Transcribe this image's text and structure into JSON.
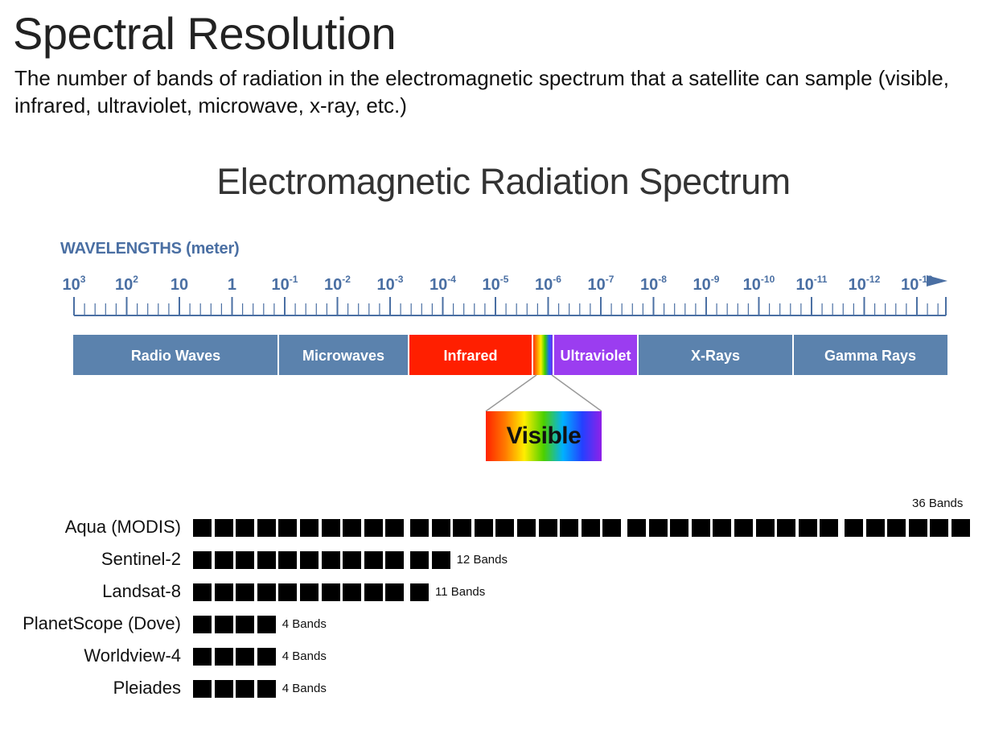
{
  "title": "Spectral Resolution",
  "subtitle": "The number of bands of radiation in the electromagnetic spectrum that a satellite can sample (visible, infrared, ultraviolet, microwave, x-ray, etc.)",
  "diagram": {
    "title": "Electromagnetic Radiation Spectrum",
    "wavelength_axis": {
      "label": "WAVELENGTHS (meter)",
      "ticks": [
        {
          "base": "10",
          "exp": "3"
        },
        {
          "base": "10",
          "exp": "2"
        },
        {
          "base": "10",
          "exp": ""
        },
        {
          "base": "1",
          "exp": ""
        },
        {
          "base": "10",
          "exp": "-1"
        },
        {
          "base": "10",
          "exp": "-2"
        },
        {
          "base": "10",
          "exp": "-3"
        },
        {
          "base": "10",
          "exp": "-4"
        },
        {
          "base": "10",
          "exp": "-5"
        },
        {
          "base": "10",
          "exp": "-6"
        },
        {
          "base": "10",
          "exp": "-7"
        },
        {
          "base": "10",
          "exp": "-8"
        },
        {
          "base": "10",
          "exp": "-9"
        },
        {
          "base": "10",
          "exp": "-10"
        },
        {
          "base": "10",
          "exp": "-11"
        },
        {
          "base": "10",
          "exp": "-12"
        },
        {
          "base": "10",
          "exp": "-13"
        }
      ]
    },
    "regions": [
      {
        "label": "Radio Waves",
        "color": "#5b82ad"
      },
      {
        "label": "Microwaves",
        "color": "#5b82ad"
      },
      {
        "label": "Infrared",
        "color": "#ff1f00"
      },
      {
        "label": "",
        "color": "visible-spectrum"
      },
      {
        "label": "Ultraviolet",
        "color": "#9b3df0"
      },
      {
        "label": "X-Rays",
        "color": "#5b82ad"
      },
      {
        "label": "Gamma Rays",
        "color": "#5b82ad"
      }
    ],
    "visible_label": "Visible"
  },
  "chart_data": {
    "type": "bar",
    "categories": [
      "Aqua (MODIS)",
      "Sentinel-2",
      "Landsat-8",
      "PlanetScope (Dove)",
      "Worldview-4",
      "Pleiades"
    ],
    "values": [
      36,
      12,
      11,
      4,
      4,
      4
    ],
    "value_labels": [
      "36 Bands",
      "12 Bands",
      "11 Bands",
      "4 Bands",
      "4 Bands",
      "4 Bands"
    ],
    "unit": "Bands",
    "bar_color": "#000000"
  }
}
